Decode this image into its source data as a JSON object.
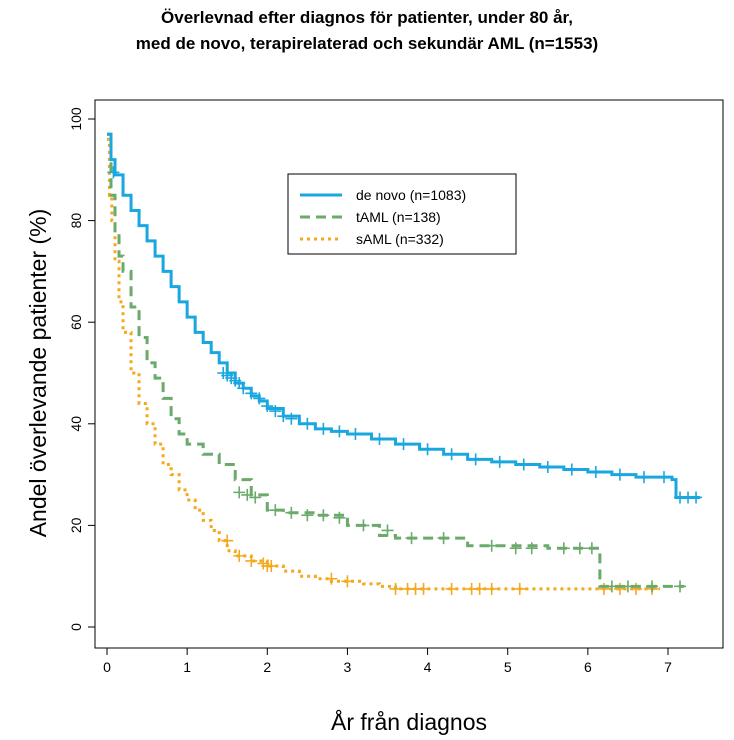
{
  "chart_data": {
    "type": "line",
    "title_lines": [
      "Överlevnad efter diagnos för patienter, under 80 år,",
      "med de novo, terapirelaterad och sekundär AML (n=1553)"
    ],
    "xlabel": "År från diagnos",
    "ylabel": "Andel överlevande patienter (%)",
    "xlim": [
      0,
      7.4
    ],
    "ylim": [
      0,
      100
    ],
    "xticks": [
      "0",
      "1",
      "2",
      "3",
      "4",
      "5",
      "6",
      "7"
    ],
    "yticks": [
      "0",
      "20",
      "40",
      "60",
      "80",
      "100"
    ],
    "grid": false,
    "legend_position": "top-right",
    "series": [
      {
        "name": "de novo (n=1083)",
        "color": "#1aa7e0",
        "style": "solid",
        "x": [
          0,
          0.05,
          0.1,
          0.2,
          0.3,
          0.4,
          0.5,
          0.6,
          0.7,
          0.8,
          0.9,
          1.0,
          1.1,
          1.2,
          1.3,
          1.4,
          1.5,
          1.6,
          1.7,
          1.8,
          1.9,
          2.0,
          2.2,
          2.4,
          2.6,
          2.8,
          3.0,
          3.3,
          3.6,
          3.9,
          4.2,
          4.5,
          4.8,
          5.1,
          5.4,
          5.7,
          6.0,
          6.3,
          6.6,
          6.9,
          7.05,
          7.1,
          7.2,
          7.4
        ],
        "y": [
          97,
          92,
          89,
          85,
          82,
          79,
          76,
          73,
          70,
          67,
          64,
          61,
          58,
          56,
          54,
          52,
          50,
          48,
          47,
          45.5,
          44.5,
          43,
          41.5,
          40,
          39,
          38.5,
          38,
          37,
          36,
          35,
          34,
          33,
          32.5,
          32,
          31.5,
          31,
          30.5,
          30,
          29.5,
          29.5,
          29,
          25.5,
          25.5,
          25.5
        ],
        "censor_x": [
          0.08,
          1.45,
          1.5,
          1.55,
          1.6,
          1.65,
          1.7,
          1.8,
          1.9,
          2.0,
          2.1,
          2.2,
          2.3,
          2.5,
          2.7,
          2.9,
          3.1,
          3.4,
          3.7,
          4.0,
          4.3,
          4.6,
          4.9,
          5.2,
          5.5,
          5.8,
          6.1,
          6.4,
          6.7,
          6.95,
          7.15,
          7.25,
          7.35
        ],
        "censor_y": [
          89.5,
          50,
          49.5,
          49,
          48.5,
          48,
          47,
          46,
          45,
          43.5,
          42.5,
          41.5,
          41,
          40,
          39,
          38.5,
          38,
          37,
          36,
          35,
          34,
          33,
          32.5,
          32,
          31.5,
          31,
          30.5,
          30,
          29.5,
          29.5,
          25.5,
          25.5,
          25.5
        ]
      },
      {
        "name": "tAML (n=138)",
        "color": "#6aaa6a",
        "style": "dashed",
        "x": [
          0,
          0.05,
          0.1,
          0.15,
          0.2,
          0.3,
          0.4,
          0.5,
          0.6,
          0.7,
          0.8,
          0.9,
          1.0,
          1.2,
          1.4,
          1.6,
          1.8,
          2.0,
          2.2,
          2.6,
          3.0,
          3.4,
          3.6,
          4.5,
          5.5,
          6.1,
          6.15,
          7.2
        ],
        "y": [
          97,
          85,
          78,
          73,
          70,
          63,
          57,
          52,
          49,
          45,
          41,
          38,
          36,
          34,
          32,
          29,
          26,
          23,
          22.5,
          22,
          20,
          18,
          17.5,
          16,
          15.5,
          15.5,
          8,
          8
        ],
        "censor_x": [
          1.65,
          1.75,
          1.85,
          2.1,
          2.3,
          2.5,
          2.7,
          2.9,
          3.2,
          3.5,
          3.8,
          4.2,
          4.8,
          5.1,
          5.3,
          5.7,
          5.9,
          6.05,
          6.3,
          6.5,
          6.8,
          7.15
        ],
        "censor_y": [
          26.5,
          26,
          25.5,
          23,
          22.5,
          22,
          22,
          21.5,
          20,
          19,
          17.5,
          17.5,
          16,
          15.5,
          15.5,
          15.5,
          15.5,
          15.5,
          8,
          8,
          8,
          8
        ]
      },
      {
        "name": "sAML (n=332)",
        "color": "#f4a81c",
        "style": "dotted",
        "x": [
          0,
          0.03,
          0.06,
          0.1,
          0.15,
          0.2,
          0.3,
          0.4,
          0.5,
          0.6,
          0.7,
          0.8,
          0.9,
          1.0,
          1.1,
          1.2,
          1.3,
          1.4,
          1.5,
          1.6,
          1.8,
          2.0,
          2.2,
          2.4,
          2.6,
          2.8,
          3.0,
          3.2,
          3.4,
          3.6,
          4.0,
          5.0,
          6.0,
          6.9
        ],
        "y": [
          96,
          85,
          80,
          72,
          64,
          58,
          50,
          44,
          40,
          36,
          32,
          30,
          27,
          25,
          23,
          21,
          19,
          17,
          15,
          14,
          13,
          12,
          11,
          10,
          9.5,
          9,
          9,
          8.5,
          8,
          7.5,
          7.5,
          7.5,
          7.5,
          7.5
        ],
        "censor_x": [
          1.5,
          1.65,
          1.8,
          1.95,
          2.0,
          2.05,
          2.8,
          3.0,
          3.6,
          3.75,
          3.85,
          3.95,
          4.3,
          4.55,
          4.65,
          4.8,
          5.15,
          6.2,
          6.4,
          6.6,
          6.8
        ],
        "censor_y": [
          17,
          14,
          13,
          12.5,
          12,
          12,
          9.5,
          9,
          7.5,
          7.5,
          7.5,
          7.5,
          7.5,
          7.5,
          7.5,
          7.5,
          7.5,
          7.5,
          7.5,
          7.5,
          7.5
        ]
      }
    ]
  }
}
